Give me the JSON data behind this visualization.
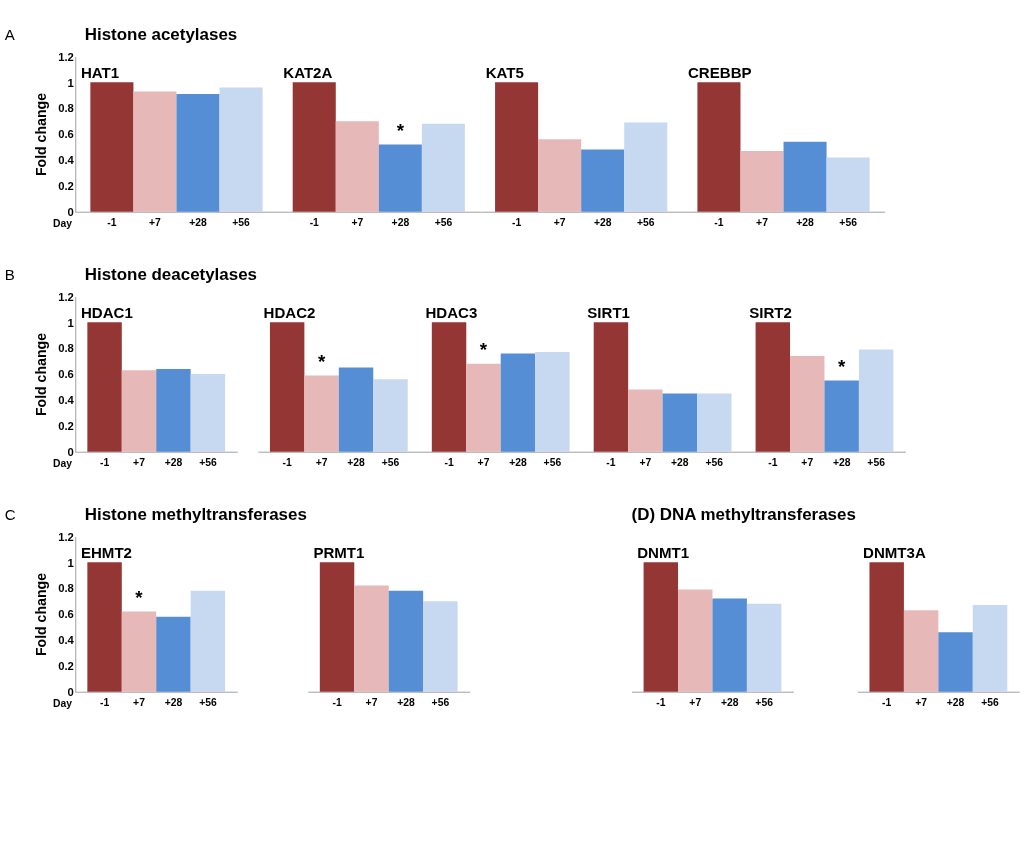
{
  "chart_data": [
    {
      "type": "bar",
      "title": "HAT1",
      "annotations": [
        "A",
        "Histone acetylases"
      ],
      "ylabel": "Fold change",
      "xlabel": "Day",
      "categories": [
        "-1",
        "+7",
        "+28",
        "+56"
      ],
      "values": [
        1,
        0.93,
        0.91,
        0.96
      ],
      "colors": [
        "#943634",
        "#e6b9b8",
        "#558ed5",
        "#c6d9f1"
      ],
      "ylim": [
        0,
        1.2
      ],
      "yticks": [
        0,
        0.2,
        0.4,
        0.6,
        0.8,
        1,
        1.2
      ]
    },
    {
      "type": "bar",
      "title": "KAT2A",
      "annotations": [
        {
          "text": "*",
          "x": "+28",
          "y": 0.52
        }
      ],
      "categories": [
        "-1",
        "+7",
        "+28",
        "+56"
      ],
      "values": [
        1,
        0.7,
        0.52,
        0.68
      ],
      "colors": [
        "#943634",
        "#e6b9b8",
        "#558ed5",
        "#c6d9f1"
      ],
      "ylim": [
        0,
        1.2
      ],
      "tick_labels": "x"
    },
    {
      "type": "bar",
      "title": "KAT5",
      "categories": [
        "-1",
        "+7",
        "+28",
        "+56"
      ],
      "values": [
        1,
        0.56,
        0.48,
        0.69
      ],
      "colors": [
        "#943634",
        "#e6b9b8",
        "#558ed5",
        "#c6d9f1"
      ],
      "ylim": [
        0,
        1.2
      ],
      "tick_labels": "x"
    },
    {
      "type": "bar",
      "title": "CREBBP",
      "categories": [
        "-1",
        "+7",
        "+28",
        "+56"
      ],
      "values": [
        1,
        0.47,
        0.54,
        0.42
      ],
      "colors": [
        "#943634",
        "#e6b9b8",
        "#558ed5",
        "#c6d9f1"
      ],
      "ylim": [
        0,
        1.2
      ],
      "tick_labels": "x"
    },
    {
      "type": "bar",
      "title": "HDAC1",
      "annotations": [
        "B",
        "Histone deacetylases"
      ],
      "ylabel": "Fold change",
      "xlabel": "Day",
      "categories": [
        "-1",
        "+7",
        "+28",
        "+56"
      ],
      "values": [
        1,
        0.63,
        0.64,
        0.6
      ],
      "colors": [
        "#943634",
        "#e6b9b8",
        "#558ed5",
        "#c6d9f1"
      ],
      "ylim": [
        0,
        1.2
      ],
      "yticks": [
        0,
        0.2,
        0.4,
        0.6,
        0.8,
        1,
        1.2
      ]
    },
    {
      "type": "bar",
      "title": "HDAC2",
      "annotations": [
        {
          "text": "*",
          "x": "+7",
          "y": 0.59
        }
      ],
      "categories": [
        "-1",
        "+7",
        "+28",
        "+56"
      ],
      "values": [
        1,
        0.59,
        0.65,
        0.56
      ],
      "colors": [
        "#943634",
        "#e6b9b8",
        "#558ed5",
        "#c6d9f1"
      ],
      "ylim": [
        0,
        1.2
      ],
      "tick_labels": "x"
    },
    {
      "type": "bar",
      "title": "HDAC3",
      "annotations": [
        {
          "text": "*",
          "x": "+7",
          "y": 0.68
        }
      ],
      "categories": [
        "-1",
        "+7",
        "+28",
        "+56"
      ],
      "values": [
        1,
        0.68,
        0.76,
        0.77
      ],
      "colors": [
        "#943634",
        "#e6b9b8",
        "#558ed5",
        "#c6d9f1"
      ],
      "ylim": [
        0,
        1.2
      ],
      "tick_labels": "x"
    },
    {
      "type": "bar",
      "title": "SIRT1",
      "categories": [
        "-1",
        "+7",
        "+28",
        "+56"
      ],
      "values": [
        1,
        0.48,
        0.45,
        0.45
      ],
      "colors": [
        "#943634",
        "#e6b9b8",
        "#558ed5",
        "#c6d9f1"
      ],
      "ylim": [
        0,
        1.2
      ],
      "tick_labels": "x"
    },
    {
      "type": "bar",
      "title": "SIRT2",
      "annotations": [
        {
          "text": "*",
          "x": "+28",
          "y": 0.55
        }
      ],
      "categories": [
        "-1",
        "+7",
        "+28",
        "+56"
      ],
      "values": [
        1,
        0.74,
        0.55,
        0.79
      ],
      "colors": [
        "#943634",
        "#e6b9b8",
        "#558ed5",
        "#c6d9f1"
      ],
      "ylim": [
        0,
        1.2
      ],
      "tick_labels": "x"
    },
    {
      "type": "bar",
      "title": "EHMT2",
      "annotations": [
        "C",
        "Histone methyltransferases",
        {
          "text": "*",
          "x": "+7",
          "y": 0.62
        }
      ],
      "ylabel": "Fold change",
      "xlabel": "Day",
      "categories": [
        "-1",
        "+7",
        "+28",
        "+56"
      ],
      "values": [
        1,
        0.62,
        0.58,
        0.78
      ],
      "colors": [
        "#943634",
        "#e6b9b8",
        "#558ed5",
        "#c6d9f1"
      ],
      "ylim": [
        0,
        1.2
      ],
      "yticks": [
        0,
        0.2,
        0.4,
        0.6,
        0.8,
        1,
        1.2
      ]
    },
    {
      "type": "bar",
      "title": "PRMT1",
      "categories": [
        "-1",
        "+7",
        "+28",
        "+56"
      ],
      "values": [
        1,
        0.82,
        0.78,
        0.7
      ],
      "colors": [
        "#943634",
        "#e6b9b8",
        "#558ed5",
        "#c6d9f1"
      ],
      "ylim": [
        0,
        1.2
      ],
      "tick_labels": "x"
    },
    {
      "type": "bar",
      "title": "DNMT1",
      "annotations": [
        "(D) DNA methyltransferases"
      ],
      "categories": [
        "-1",
        "+7",
        "+28",
        "+56"
      ],
      "values": [
        1,
        0.79,
        0.72,
        0.68
      ],
      "colors": [
        "#943634",
        "#e6b9b8",
        "#558ed5",
        "#c6d9f1"
      ],
      "ylim": [
        0,
        1.2
      ],
      "tick_labels": "x"
    },
    {
      "type": "bar",
      "title": "DNMT3A",
      "categories": [
        "-1",
        "+7",
        "+28",
        "+56"
      ],
      "values": [
        1,
        0.63,
        0.46,
        0.67
      ],
      "colors": [
        "#943634",
        "#e6b9b8",
        "#558ed5",
        "#c6d9f1"
      ],
      "ylim": [
        0,
        1.2
      ],
      "tick_labels": "x"
    }
  ]
}
